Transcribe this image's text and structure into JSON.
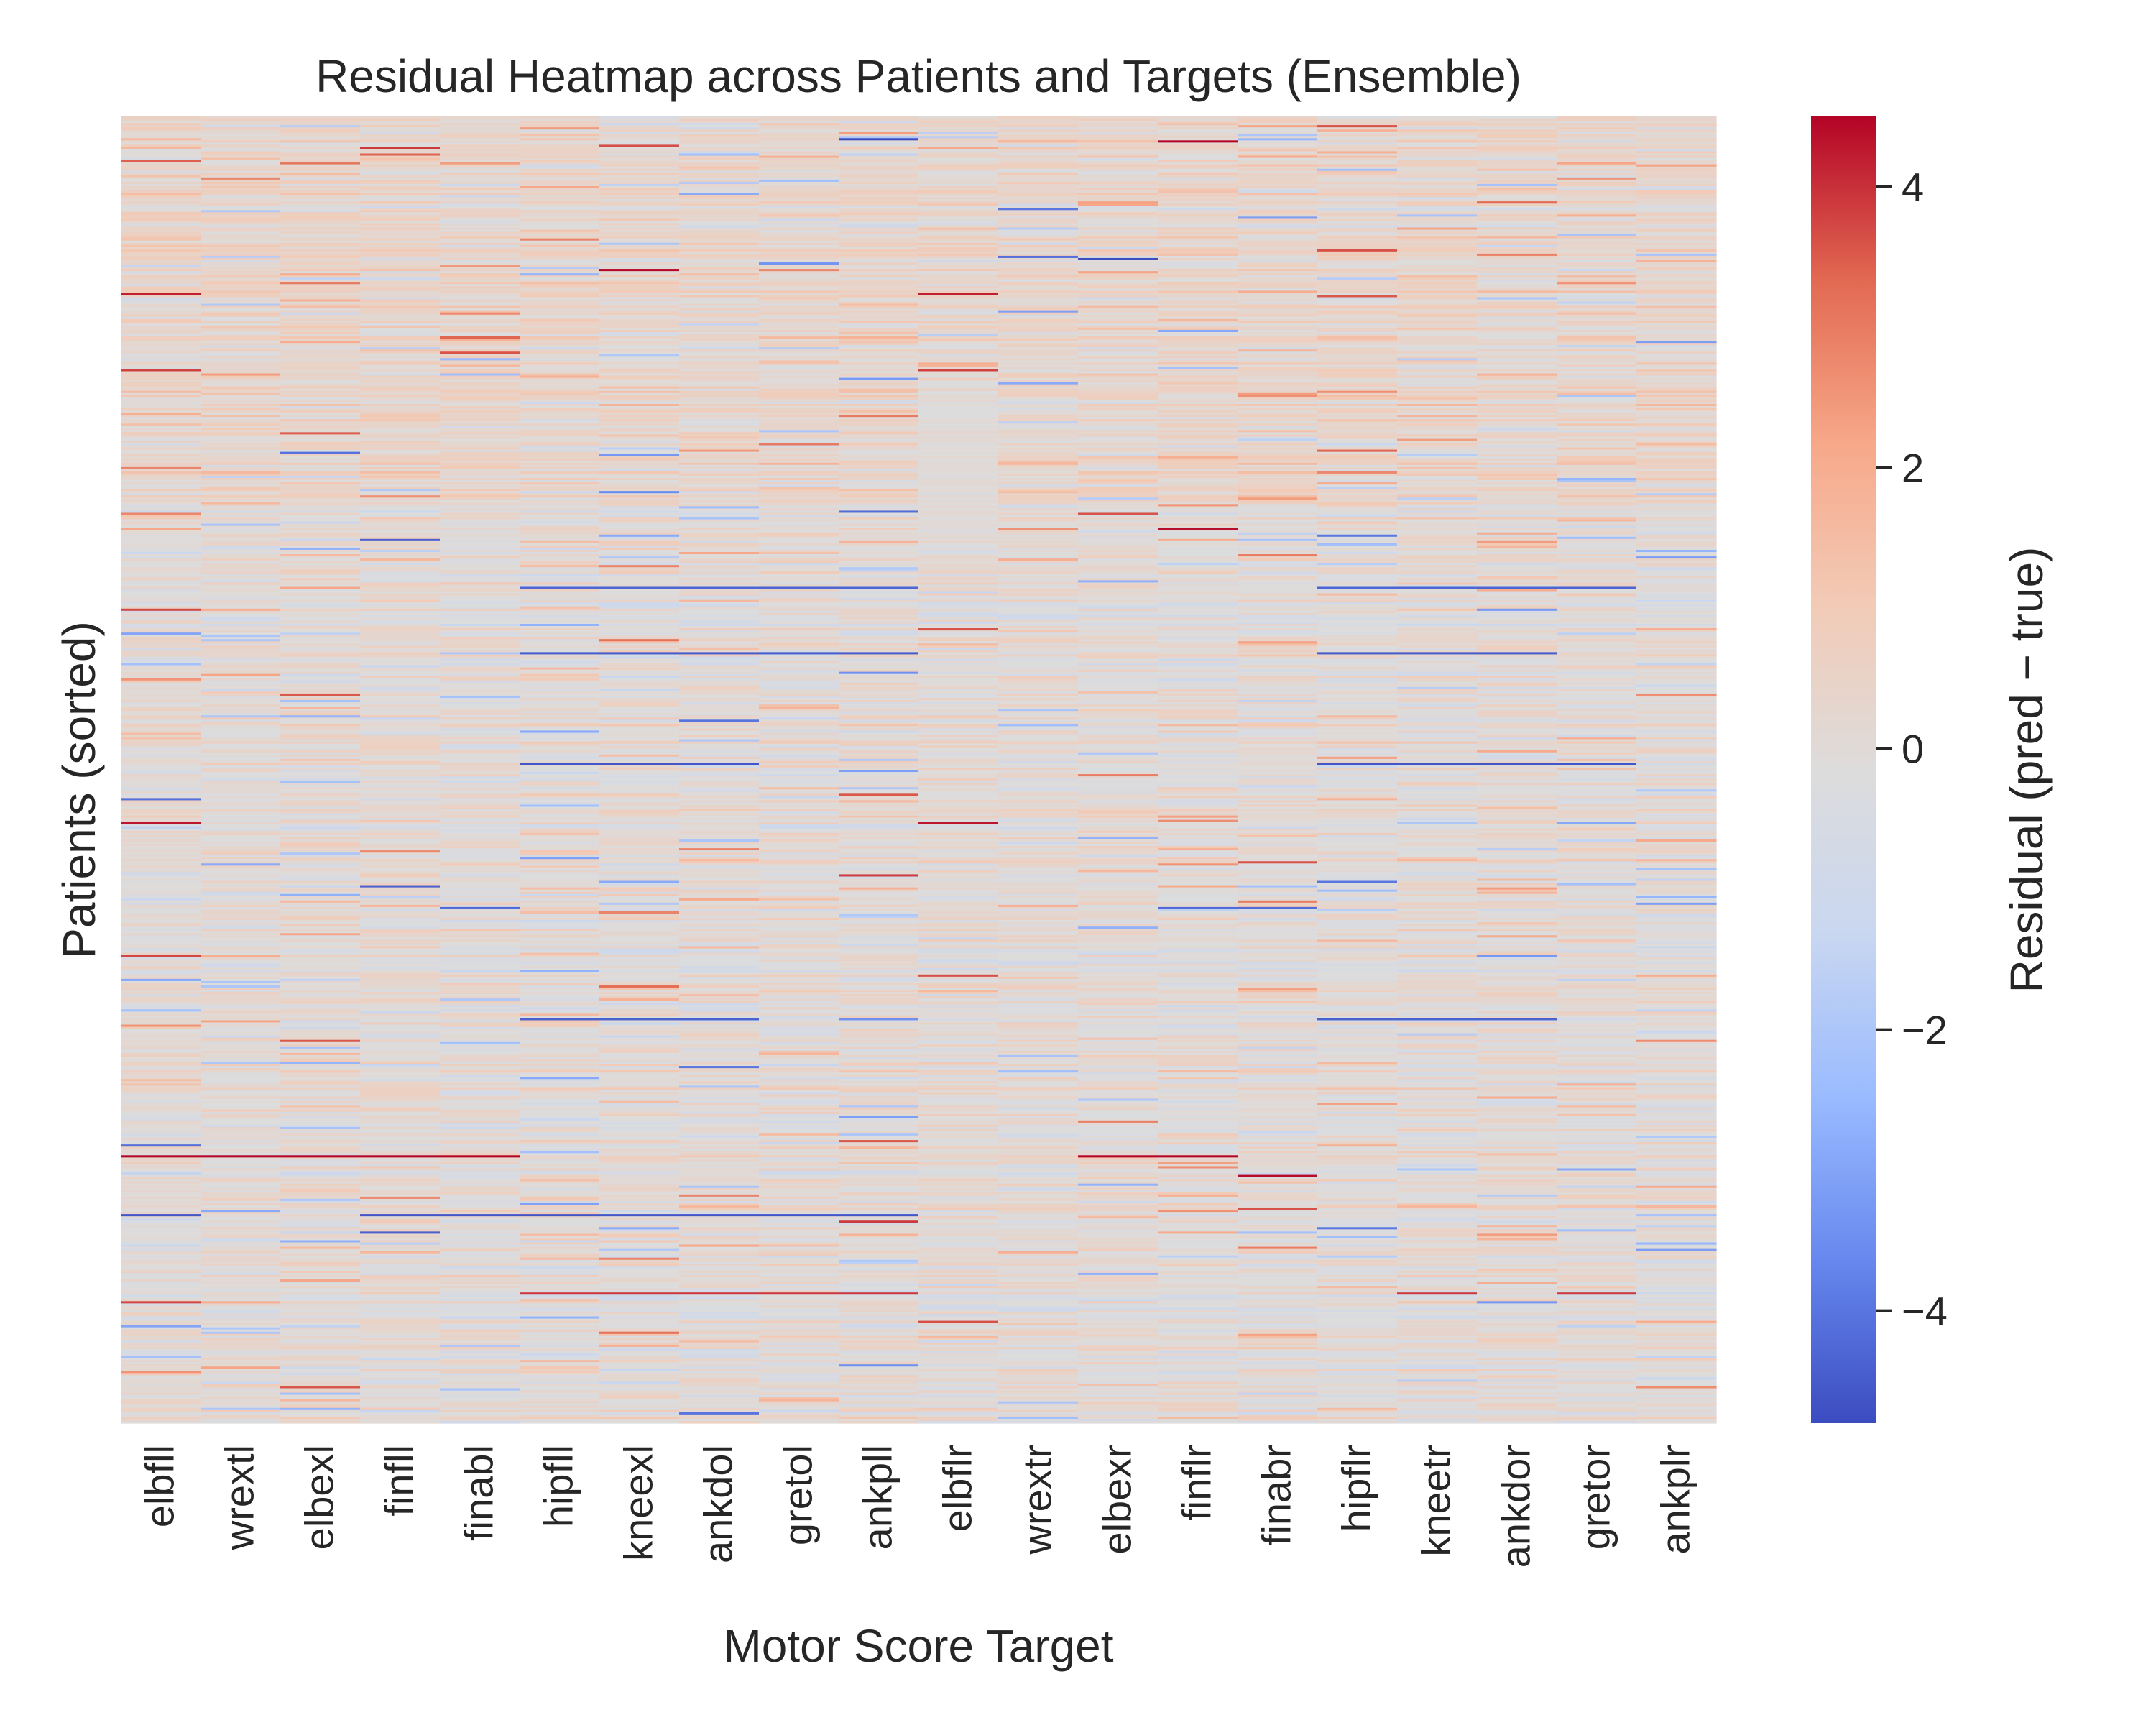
{
  "chart_data": {
    "type": "heatmap",
    "title": "Residual Heatmap across Patients and Targets (Ensemble)",
    "xlabel": "Motor Score Target",
    "ylabel": "Patients (sorted)",
    "columns": [
      "elbfll",
      "wrextl",
      "elbexl",
      "finfll",
      "finabl",
      "hipfll",
      "kneexl",
      "ankdol",
      "gretol",
      "ankpll",
      "elbflr",
      "wrextr",
      "elbexr",
      "finflr",
      "finabr",
      "hipflr",
      "kneetr",
      "ankdor",
      "gretor",
      "ankplr"
    ],
    "colorbar": {
      "label": "Residual (pred − true)",
      "vmin": -4.8,
      "vmax": 4.5,
      "ticks": [
        -4,
        -2,
        0,
        2,
        4
      ],
      "tick_labels": [
        "−4",
        "−2",
        "0",
        "2",
        "4"
      ],
      "colormap": "coolwarm",
      "colormap_stops": [
        "#3b4cc0",
        "#6788ee",
        "#9abbff",
        "#c9d7f0",
        "#dddcdc",
        "#f2cbb7",
        "#f7a889",
        "#e26952",
        "#b40426"
      ]
    },
    "num_patients_estimated": 600,
    "notes_visible": "per-patient residual values too dense to read individually; rows rendered procedurally",
    "notable_rows": [
      {
        "row_fraction": 0.135,
        "columns": [
          0,
          10
        ],
        "value": 4.2
      },
      {
        "row_fraction": 0.193,
        "columns": [
          0,
          10
        ],
        "value": 3.8
      },
      {
        "row_fraction": 0.36,
        "columns": [
          5,
          6,
          7,
          8,
          9,
          15,
          16,
          17,
          18
        ],
        "value": -4.3
      },
      {
        "row_fraction": 0.41,
        "columns": [
          5,
          6,
          7,
          8,
          9,
          15,
          16,
          17
        ],
        "value": -4.5
      },
      {
        "row_fraction": 0.495,
        "columns": [
          5,
          6,
          7,
          15,
          16,
          17,
          18
        ],
        "value": -4.6
      },
      {
        "row_fraction": 0.54,
        "columns": [
          0,
          10
        ],
        "value": 4.3
      },
      {
        "row_fraction": 0.605,
        "columns": [
          4,
          13,
          14
        ],
        "value": -4.2
      },
      {
        "row_fraction": 0.69,
        "columns": [
          5,
          6,
          7,
          15,
          16,
          17
        ],
        "value": -4.4
      },
      {
        "row_fraction": 0.795,
        "columns": [
          0,
          1,
          2,
          3,
          4,
          12,
          13
        ],
        "value": 4.5
      },
      {
        "row_fraction": 0.81,
        "columns": [
          14
        ],
        "value": 4.4
      },
      {
        "row_fraction": 0.84,
        "columns": [
          0,
          3,
          4,
          5,
          6,
          7,
          8,
          9
        ],
        "value": -4.6
      },
      {
        "row_fraction": 0.9,
        "columns": [
          5,
          6,
          7,
          8,
          9,
          16,
          18
        ],
        "value": 3.9
      }
    ]
  }
}
